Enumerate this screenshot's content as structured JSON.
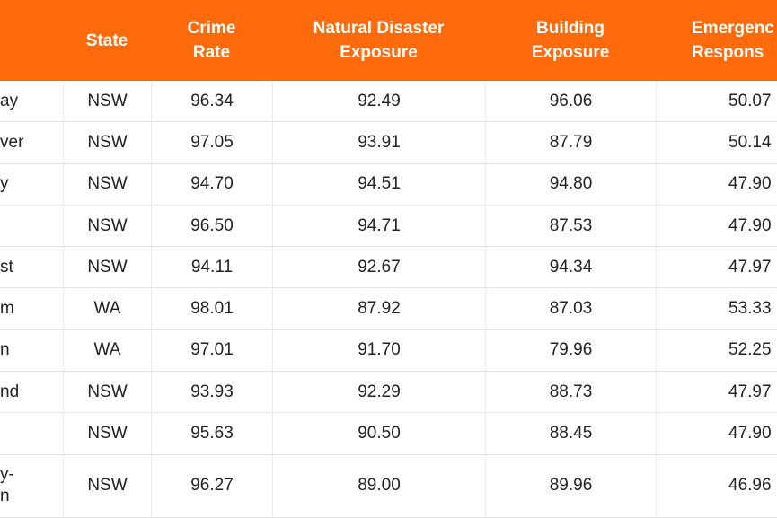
{
  "table": {
    "header": [
      "",
      "State",
      "Crime\nRate",
      "Natural Disaster\nExposure",
      "Building\nExposure",
      "Emergenc\nRespons"
    ],
    "rows": [
      [
        "ay",
        "NSW",
        "96.34",
        "92.49",
        "96.06",
        "50.07"
      ],
      [
        "ver",
        "NSW",
        "97.05",
        "93.91",
        "87.79",
        "50.14"
      ],
      [
        "y",
        "NSW",
        "94.70",
        "94.51",
        "94.80",
        "47.90"
      ],
      [
        "",
        "NSW",
        "96.50",
        "94.71",
        "87.53",
        "47.90"
      ],
      [
        "st",
        "NSW",
        "94.11",
        "92.67",
        "94.34",
        "47.97"
      ],
      [
        "m",
        "WA",
        "98.01",
        "87.92",
        "87.03",
        "53.33"
      ],
      [
        "n",
        "WA",
        "97.01",
        "91.70",
        "79.96",
        "52.25"
      ],
      [
        "nd",
        "NSW",
        "93.93",
        "92.29",
        "88.73",
        "47.97"
      ],
      [
        "",
        "NSW",
        "95.63",
        "90.50",
        "88.45",
        "47.90"
      ],
      [
        "y-\nn",
        "NSW",
        "96.27",
        "89.00",
        "89.96",
        "46.96"
      ]
    ]
  }
}
